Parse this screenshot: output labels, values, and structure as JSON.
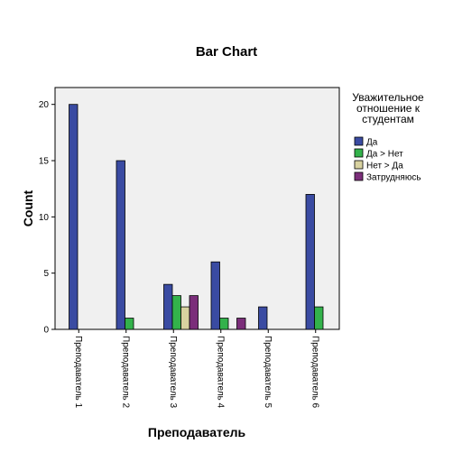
{
  "chart_data": {
    "type": "bar",
    "title": "Bar Chart",
    "xlabel": "Преподаватель",
    "ylabel": "Count",
    "ylim": [
      0,
      21.5
    ],
    "yticks": [
      0,
      5,
      10,
      15,
      20
    ],
    "grid": false,
    "legend_position": "right",
    "legend_title": [
      "Уважительное",
      "отношение к",
      "студентам"
    ],
    "categories": [
      "Преподаватель 1",
      "Преподаватель 2",
      "Преподаватель 3",
      "Преподаватель 4",
      "Преподаватель 5",
      "Преподаватель 6"
    ],
    "series": [
      {
        "name": "Да",
        "color": "#3a4ba2",
        "values": [
          20,
          15,
          4,
          6,
          2,
          12
        ]
      },
      {
        "name": "Да > Нет",
        "color": "#33b24b",
        "values": [
          0,
          1,
          3,
          1,
          0,
          2
        ]
      },
      {
        "name": "Нет > Да",
        "color": "#d8d2a0",
        "values": [
          0,
          0,
          2,
          0,
          0,
          0
        ]
      },
      {
        "name": "Затрудняюсь",
        "color": "#7b2e7a",
        "values": [
          0,
          0,
          3,
          1,
          0,
          0
        ]
      }
    ],
    "plot_background": "#f0f0f0"
  }
}
